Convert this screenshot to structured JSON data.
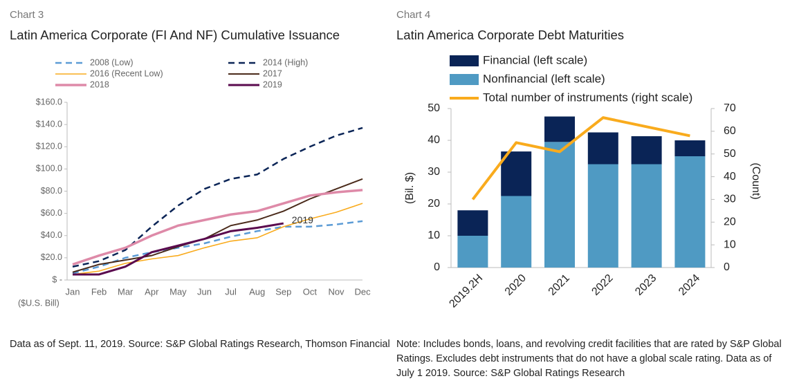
{
  "chart_data": [
    {
      "type": "line",
      "label": "Chart 3",
      "title": "Latin America Corporate (FI And NF) Cumulative Issuance",
      "y_label": "($U.S. Bill)",
      "categories": [
        "Jan",
        "Feb",
        "Mar",
        "Apr",
        "May",
        "Jun",
        "Jul",
        "Aug",
        "Sep",
        "Oct",
        "Nov",
        "Dec"
      ],
      "series": [
        {
          "name": "2008 (Low)",
          "color": "#5b9bd5",
          "dashed": true,
          "values": [
            6,
            12,
            20,
            25,
            29,
            33,
            39,
            44,
            48,
            48,
            50,
            53
          ]
        },
        {
          "name": "2014 (High)",
          "color": "#0a2456",
          "dashed": true,
          "values": [
            12,
            17,
            27,
            48,
            67,
            82,
            91,
            95,
            109,
            120,
            130,
            137
          ]
        },
        {
          "name": "2016 (Recent Low)",
          "color": "#f9ab1d",
          "dashed": false,
          "values": [
            5,
            8,
            15,
            19,
            22,
            29,
            35,
            38,
            48,
            55,
            61,
            69
          ]
        },
        {
          "name": "2017",
          "color": "#4a2a1a",
          "dashed": false,
          "values": [
            7,
            14,
            18,
            22,
            30,
            37,
            49,
            54,
            62,
            73,
            82,
            91
          ]
        },
        {
          "name": "2018",
          "color": "#de8aa8",
          "dashed": false,
          "values": [
            14,
            22,
            29,
            40,
            49,
            54,
            59,
            62,
            69,
            76,
            79,
            81
          ]
        },
        {
          "name": "2019",
          "color": "#5a0a4e",
          "dashed": false,
          "values": [
            5,
            5,
            12,
            25,
            31,
            37,
            44,
            47,
            51,
            null,
            null,
            null
          ]
        }
      ],
      "annotation": "2019",
      "ylim": [
        0,
        160
      ],
      "yticks": [
        {
          "value": 0,
          "label": "$ -"
        },
        {
          "value": 20,
          "label": "$20.0"
        },
        {
          "value": 40,
          "label": "$40.0"
        },
        {
          "value": 60,
          "label": "$60.0"
        },
        {
          "value": 80,
          "label": "$80.0"
        },
        {
          "value": 100,
          "label": "$100.0"
        },
        {
          "value": 120,
          "label": "$120.0"
        },
        {
          "value": 140,
          "label": "$140.0"
        },
        {
          "value": 160,
          "label": "$160.0"
        }
      ],
      "grid": false,
      "note": "Data as of Sept. 11, 2019. Source: S&P Global Ratings Research, Thomson Financial"
    },
    {
      "type": "bar",
      "stacked": true,
      "label": "Chart 4",
      "title": "Latin America Corporate Debt Maturities",
      "y_label": "(Bil. $)",
      "y2_label": "(Count)",
      "categories": [
        "2019.2H",
        "2020",
        "2021",
        "2022",
        "2023",
        "2024"
      ],
      "series": [
        {
          "name": "Financial (left scale)",
          "color": "#0a2456",
          "values": [
            8,
            14,
            8,
            10,
            8.8,
            5
          ]
        },
        {
          "name": "Nonfinancial (left scale)",
          "color": "#4f9ac3",
          "values": [
            10,
            22.5,
            39.5,
            32.5,
            32.5,
            35
          ]
        },
        {
          "name": "Total number of instruments (right scale)",
          "color": "#f9ab1d",
          "axis": "y2",
          "values": [
            30,
            55,
            51,
            66,
            62,
            58
          ]
        }
      ],
      "ylim": [
        0,
        50
      ],
      "yticks": [
        0,
        10,
        20,
        30,
        40,
        50
      ],
      "y2lim": [
        0,
        70
      ],
      "y2ticks": [
        0,
        10,
        20,
        30,
        40,
        50,
        60,
        70
      ],
      "grid": false,
      "note": "Note: Includes bonds, loans, and revolving credit facilities that are rated by S&P Global Ratings. Excludes debt instruments that do not have a global scale rating. Data as of July 1 2019.  Source: S&P Global Ratings Research"
    }
  ]
}
